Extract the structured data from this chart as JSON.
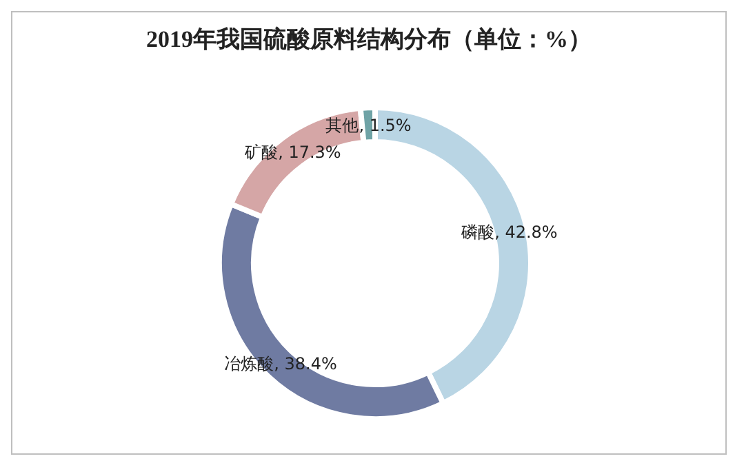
{
  "chart_data": {
    "type": "donut",
    "title": "2019年我国硫酸原料结构分布（单位：%）",
    "categories": [
      "磷酸",
      "冶炼酸",
      "矿酸",
      "其他"
    ],
    "values": [
      42.8,
      38.4,
      17.3,
      1.5
    ],
    "colors": [
      "#b9d5e4",
      "#6f7ba2",
      "#d5a6a6",
      "#6fa3a6"
    ],
    "value_labels": [
      "42.8%",
      "38.4%",
      "17.3%",
      "1.5%"
    ],
    "legend": false
  }
}
